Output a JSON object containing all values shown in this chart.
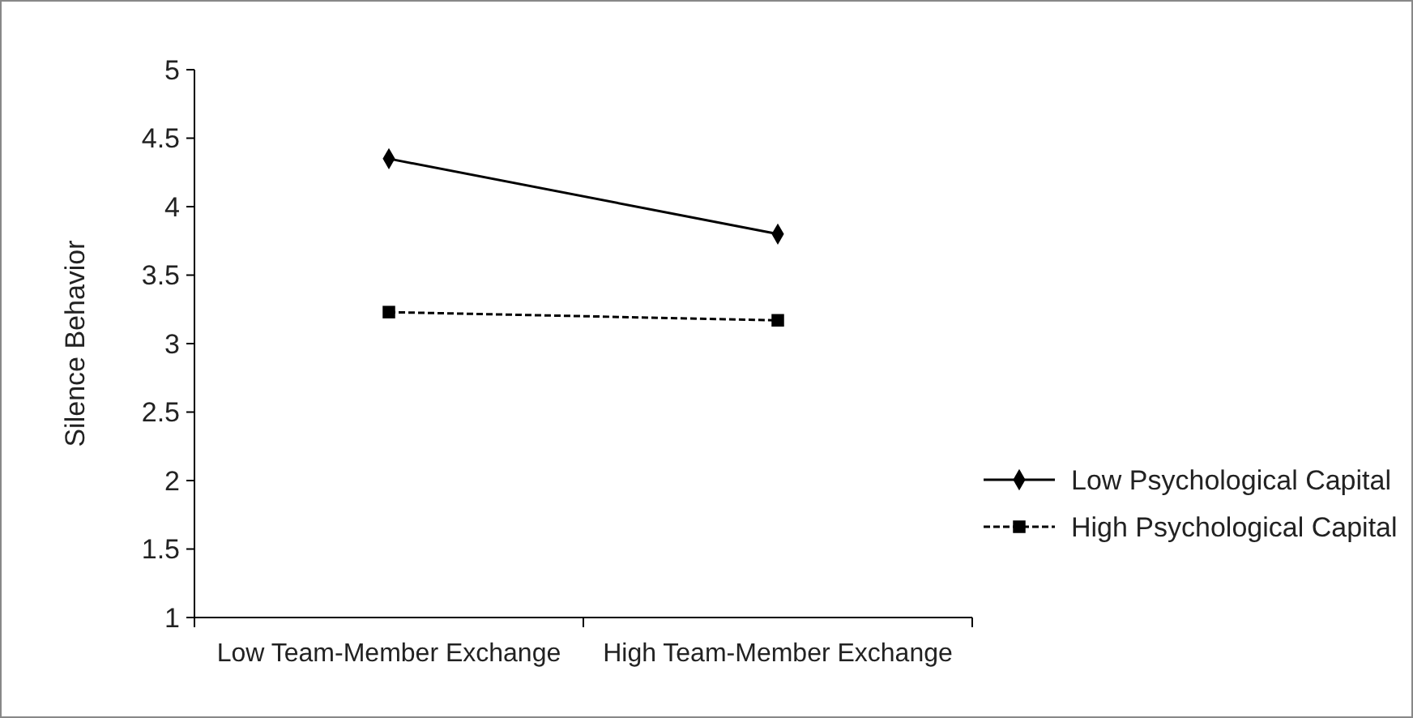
{
  "chart_data": {
    "type": "line",
    "ylabel": "Silence Behavior",
    "categories": [
      "Low Team-Member Exchange",
      "High Team-Member Exchange"
    ],
    "series": [
      {
        "name": "Low Psychological Capital",
        "color": "#000000",
        "values": [
          4.35,
          3.8
        ],
        "marker": "diamond",
        "line_style": "solid"
      },
      {
        "name": "High Psychological Capital",
        "color": "#000000",
        "values": [
          3.23,
          3.17
        ],
        "marker": "square",
        "line_style": "dashed"
      }
    ],
    "ylim": [
      1,
      5
    ],
    "yticks": [
      1,
      1.5,
      2,
      2.5,
      3,
      3.5,
      4,
      4.5,
      5
    ],
    "grid": false,
    "legend": "right"
  }
}
